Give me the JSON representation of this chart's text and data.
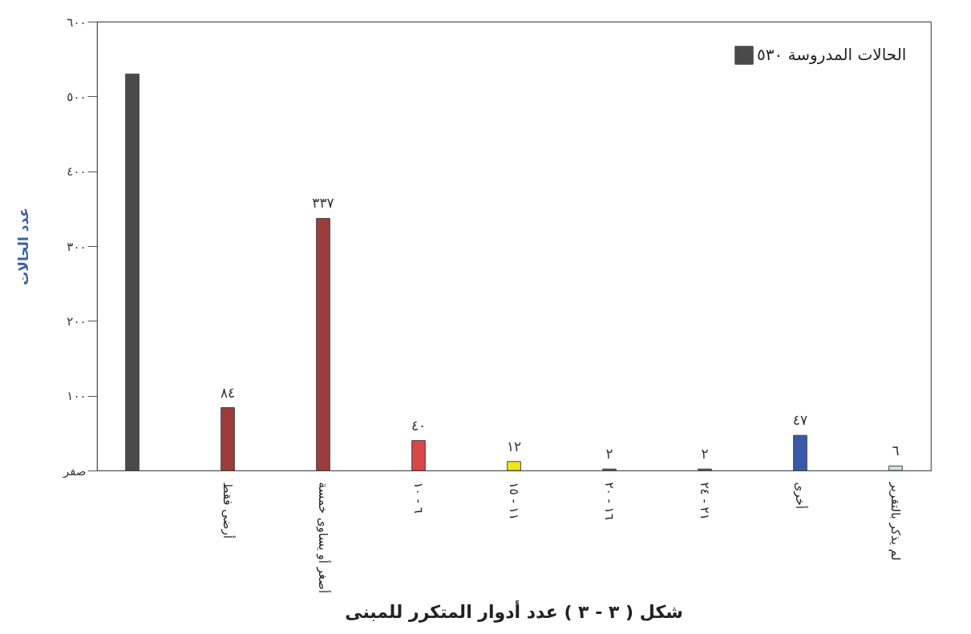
{
  "chart_data": {
    "type": "bar",
    "title": "شكل ( ٣ - ٣ ) عدد أدوار المتكرر للمبنى",
    "ylabel": "عدد الحالات",
    "categories": [
      null,
      "أرضى فقط",
      "أصغر أو يساوى خمسة",
      "٦ - ١٠",
      "١١ - ١٥",
      "١٦ - ٢٠",
      "٢١ - ٢٤",
      "أخرى",
      "لم يذكر بالتقرير"
    ],
    "series": [
      {
        "name": "الحالات المدروسة ٥٣٠",
        "color": "#4a4a4a",
        "values": [
          530,
          null,
          null,
          null,
          null,
          null,
          null,
          null,
          null
        ]
      },
      {
        "colors": [
          null,
          "#9c3c3c",
          "#9c3c3c",
          "#d84848",
          "#f2e61a",
          "#3c5c9c",
          "#3c5c9c",
          "#3a58a8",
          "#c6e2ea"
        ],
        "values": [
          null,
          84,
          337,
          40,
          12,
          2,
          2,
          47,
          6
        ],
        "value_labels": [
          null,
          "٨٤",
          "٣٣٧",
          "٤٠",
          "١٢",
          "٢",
          "٢",
          "٤٧",
          "٦"
        ]
      }
    ],
    "ylim": [
      0,
      600
    ],
    "yticks": [
      {
        "value": 0,
        "label": "صفر"
      },
      {
        "value": 100,
        "label": "١٠٠"
      },
      {
        "value": 200,
        "label": "٢٠٠"
      },
      {
        "value": 300,
        "label": "٣٠٠"
      },
      {
        "value": 400,
        "label": "٤٠٠"
      },
      {
        "value": 500,
        "label": "٥٠٠"
      },
      {
        "value": 600,
        "label": "٦٠٠"
      }
    ],
    "legend": "top right",
    "grid": false
  }
}
